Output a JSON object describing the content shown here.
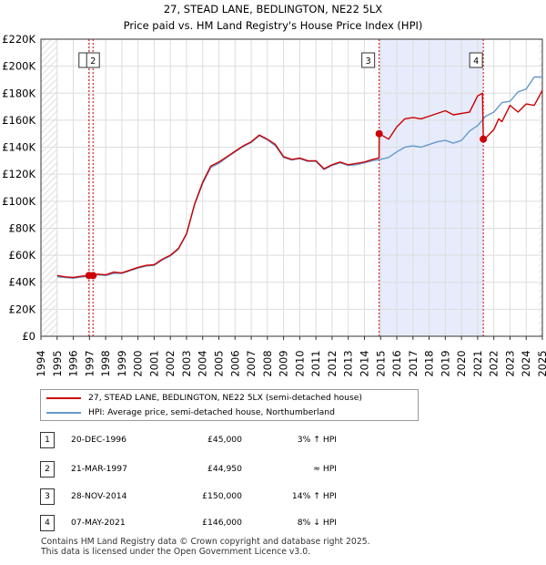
{
  "chart_data": {
    "type": "line",
    "title": "27, STEAD LANE, BEDLINGTON, NE22 5LX",
    "subtitle": "Price paid vs. HM Land Registry's House Price Index (HPI)",
    "xlabel": "",
    "ylabel": "",
    "xlim": [
      1994.0,
      2025.0
    ],
    "ylim": [
      0,
      220000
    ],
    "x_ticks": [
      1994,
      1995,
      1996,
      1997,
      1998,
      1999,
      2000,
      2001,
      2002,
      2003,
      2004,
      2005,
      2006,
      2007,
      2008,
      2009,
      2010,
      2011,
      2012,
      2013,
      2014,
      2015,
      2016,
      2017,
      2018,
      2019,
      2020,
      2021,
      2022,
      2023,
      2024,
      2025
    ],
    "x_tick_labels": [
      "1994",
      "1995",
      "1996",
      "1997",
      "1998",
      "1999",
      "2000",
      "2001",
      "2002",
      "2003",
      "2004",
      "2005",
      "2006",
      "2007",
      "2008",
      "2009",
      "2010",
      "2011",
      "2012",
      "2013",
      "2014",
      "2015",
      "2016",
      "2017",
      "2018",
      "2019",
      "2020",
      "2021",
      "2022",
      "2023",
      "2024",
      "2025"
    ],
    "y_ticks": [
      0,
      20000,
      40000,
      60000,
      80000,
      100000,
      120000,
      140000,
      160000,
      180000,
      200000,
      220000
    ],
    "y_tick_labels": [
      "£0",
      "£20K",
      "£40K",
      "£60K",
      "£80K",
      "£100K",
      "£120K",
      "£140K",
      "£160K",
      "£180K",
      "£200K",
      "£220K"
    ],
    "grid": true,
    "shaded_regions": [
      {
        "from": 2014.91,
        "to": 2021.35
      }
    ],
    "hatched_regions": [
      {
        "from": 1994.0,
        "to": 1995.0
      },
      {
        "from": 2024.8,
        "to": 2025.0
      }
    ],
    "series": [
      {
        "name": "27, STEAD LANE, BEDLINGTON, NE22 5LX (semi-detached house)",
        "color": "#cc0000",
        "x": [
          1995.0,
          1995.5,
          1996.0,
          1996.5,
          1996.97,
          1997.22,
          1997.5,
          1998.0,
          1998.5,
          1999.0,
          1999.5,
          2000.0,
          2000.5,
          2001.0,
          2001.5,
          2002.0,
          2002.5,
          2003.0,
          2003.5,
          2004.0,
          2004.5,
          2005.0,
          2005.5,
          2006.0,
          2006.5,
          2007.0,
          2007.5,
          2008.0,
          2008.5,
          2009.0,
          2009.5,
          2010.0,
          2010.5,
          2011.0,
          2011.5,
          2012.0,
          2012.5,
          2013.0,
          2013.5,
          2014.0,
          2014.5,
          2014.9,
          2014.91,
          2015.5,
          2016.0,
          2016.5,
          2017.0,
          2017.5,
          2018.0,
          2018.5,
          2019.0,
          2019.5,
          2020.0,
          2020.5,
          2021.0,
          2021.3,
          2021.35,
          2021.5,
          2022.0,
          2022.3,
          2022.5,
          2023.0,
          2023.5,
          2024.0,
          2024.5,
          2025.0
        ],
        "values": [
          45000,
          44000,
          43500,
          44500,
          45000,
          44950,
          46000,
          45500,
          47500,
          47000,
          49000,
          51000,
          52500,
          53000,
          57000,
          60000,
          65000,
          76000,
          98000,
          114000,
          126000,
          129000,
          133000,
          137000,
          141000,
          144000,
          149000,
          146000,
          142000,
          133000,
          131000,
          132000,
          130000,
          130000,
          124000,
          127000,
          129000,
          127000,
          128000,
          129000,
          131000,
          132000,
          150000,
          146000,
          155000,
          161000,
          162000,
          161000,
          163000,
          165000,
          167000,
          164000,
          165000,
          166000,
          178000,
          180000,
          146000,
          147000,
          153000,
          161000,
          159000,
          171000,
          166000,
          172000,
          171000,
          182000
        ]
      },
      {
        "name": "HPI: Average price, semi-detached house, Northumberland",
        "color": "#6699cc",
        "x": [
          1995.0,
          1995.5,
          1996.0,
          1996.5,
          1997.0,
          1997.5,
          1998.0,
          1998.5,
          1999.0,
          1999.5,
          2000.0,
          2000.5,
          2001.0,
          2001.5,
          2002.0,
          2002.5,
          2003.0,
          2003.5,
          2004.0,
          2004.5,
          2005.0,
          2005.5,
          2006.0,
          2006.5,
          2007.0,
          2007.5,
          2008.0,
          2008.5,
          2009.0,
          2009.5,
          2010.0,
          2010.5,
          2011.0,
          2011.5,
          2012.0,
          2012.5,
          2013.0,
          2013.5,
          2014.0,
          2014.5,
          2015.0,
          2015.5,
          2016.0,
          2016.5,
          2017.0,
          2017.5,
          2018.0,
          2018.5,
          2019.0,
          2019.5,
          2020.0,
          2020.5,
          2021.0,
          2021.5,
          2022.0,
          2022.5,
          2023.0,
          2023.5,
          2024.0,
          2024.5,
          2025.0
        ],
        "values": [
          44000,
          43500,
          43000,
          43800,
          44500,
          45500,
          45000,
          46500,
          46500,
          48500,
          50500,
          52000,
          52500,
          56500,
          59500,
          64500,
          75500,
          97500,
          113000,
          125000,
          128000,
          132500,
          136500,
          140500,
          143500,
          148500,
          145500,
          141000,
          132500,
          130500,
          131500,
          129500,
          129500,
          123500,
          126500,
          128500,
          126500,
          127000,
          128500,
          130000,
          131000,
          132500,
          136500,
          140000,
          141000,
          140000,
          142000,
          144000,
          145000,
          143000,
          145000,
          152000,
          156000,
          163000,
          166000,
          173000,
          174000,
          181000,
          183000,
          192000,
          192000
        ]
      }
    ],
    "sale_markers": [
      {
        "label": "1",
        "x": 1996.97,
        "value": 45000
      },
      {
        "label": "2",
        "x": 1997.22,
        "value": 44950
      },
      {
        "label": "3",
        "x": 2014.91,
        "value": 150000
      },
      {
        "label": "4",
        "x": 2021.35,
        "value": 146000
      }
    ],
    "vlines": [
      {
        "label": "1",
        "x": 1996.97,
        "show_label": false
      },
      {
        "label": "2",
        "x": 1997.22,
        "show_label": true
      },
      {
        "label": "3",
        "x": 2014.91,
        "show_label": true
      },
      {
        "label": "4",
        "x": 2021.35,
        "show_label": true
      }
    ]
  },
  "legend": {
    "items": [
      {
        "label": "27, STEAD LANE, BEDLINGTON, NE22 5LX (semi-detached house)",
        "color": "#cc0000"
      },
      {
        "label": "HPI: Average price, semi-detached house, Northumberland",
        "color": "#6699cc"
      }
    ]
  },
  "sales": [
    {
      "num": "1",
      "date": "20-DEC-1996",
      "price": "£45,000",
      "hpi": "3% ↑ HPI"
    },
    {
      "num": "2",
      "date": "21-MAR-1997",
      "price": "£44,950",
      "hpi": "≈ HPI"
    },
    {
      "num": "3",
      "date": "28-NOV-2014",
      "price": "£150,000",
      "hpi": "14% ↑ HPI"
    },
    {
      "num": "4",
      "date": "07-MAY-2021",
      "price": "£146,000",
      "hpi": "8% ↓ HPI"
    }
  ],
  "footer": {
    "line1": "Contains HM Land Registry data © Crown copyright and database right 2025.",
    "line2": "This data is licensed under the Open Government Licence v3.0."
  }
}
